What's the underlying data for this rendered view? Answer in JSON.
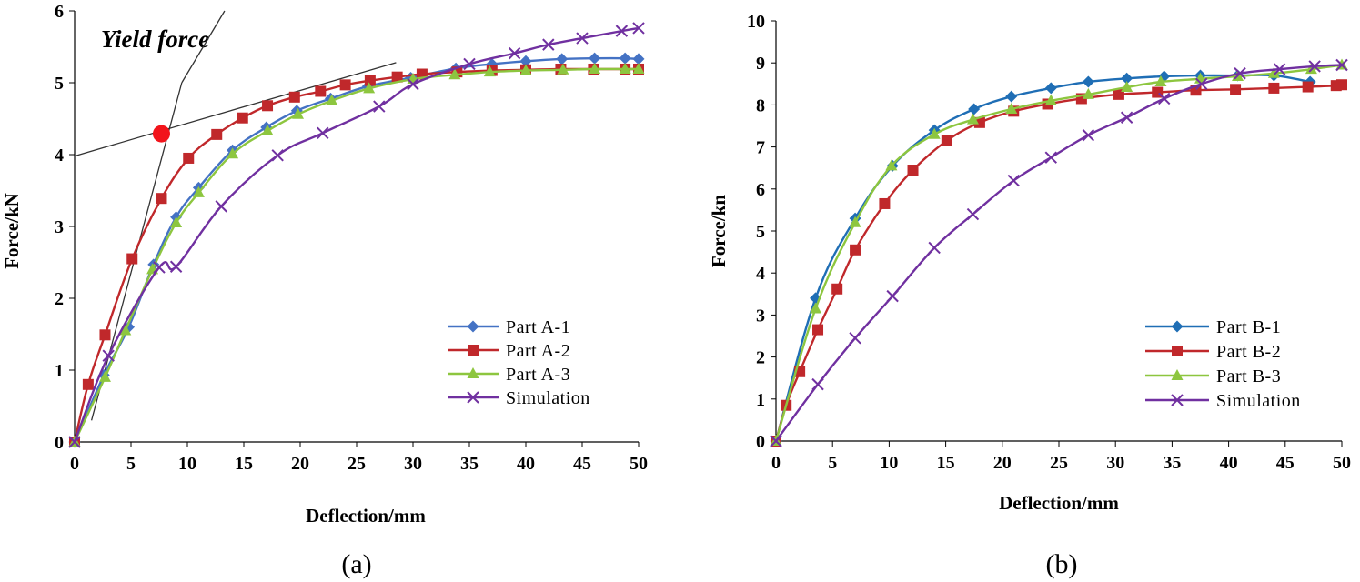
{
  "chart_data": [
    {
      "type": "line",
      "panel": "(a)",
      "title": "",
      "xlabel": "Deflection/mm",
      "ylabel": "Force/kN",
      "xlim": [
        0,
        50
      ],
      "ylim": [
        0,
        6
      ],
      "xticks": [
        0,
        5,
        10,
        15,
        20,
        25,
        30,
        35,
        40,
        45,
        50
      ],
      "yticks": [
        0,
        1,
        2,
        3,
        4,
        5,
        6
      ],
      "legend_position": "bottom-right",
      "annotation": {
        "text": "Yield force",
        "point": [
          7.7,
          4.29
        ]
      },
      "tangent_lines": [
        {
          "from": [
            0,
            3.98
          ],
          "to": [
            28.5,
            5.28
          ]
        },
        {
          "from": [
            1.5,
            0.3
          ],
          "to": [
            9.5,
            5.0
          ]
        },
        {
          "from": [
            9.5,
            5.0
          ],
          "to": [
            13.3,
            6.0
          ]
        }
      ],
      "series": [
        {
          "name": "Part A-1",
          "color": "#4472C4",
          "marker": "diamond",
          "x": [
            0,
            2.6,
            4.8,
            7.0,
            9.0,
            11.0,
            14.0,
            17.0,
            19.7,
            22.7,
            26.0,
            29.8,
            33.8,
            37.0,
            40.0,
            43.2,
            46.1,
            48.8,
            50
          ],
          "y": [
            0,
            0.93,
            1.6,
            2.47,
            3.13,
            3.54,
            4.06,
            4.38,
            4.61,
            4.78,
            4.95,
            5.07,
            5.2,
            5.26,
            5.3,
            5.33,
            5.34,
            5.34,
            5.33
          ]
        },
        {
          "name": "Part A-2",
          "color": "#C0282B",
          "marker": "square",
          "x": [
            0,
            1.2,
            2.7,
            5.1,
            7.7,
            10.1,
            12.6,
            14.9,
            17.1,
            19.5,
            21.8,
            24.0,
            26.2,
            28.6,
            30.8,
            33.9,
            37.0,
            40.0,
            43.1,
            46.0,
            48.8,
            50
          ],
          "y": [
            0,
            0.8,
            1.49,
            2.55,
            3.39,
            3.95,
            4.28,
            4.51,
            4.68,
            4.8,
            4.88,
            4.97,
            5.03,
            5.08,
            5.12,
            5.15,
            5.17,
            5.18,
            5.19,
            5.19,
            5.19,
            5.19
          ]
        },
        {
          "name": "Part A-3",
          "color": "#8DC63F",
          "marker": "triangle",
          "x": [
            0,
            2.7,
            4.5,
            6.9,
            9.0,
            11.0,
            14.0,
            17.1,
            19.8,
            22.8,
            26.1,
            30.0,
            33.7,
            36.8,
            40.0,
            43.3,
            46.1,
            48.8,
            50
          ],
          "y": [
            0,
            0.9,
            1.55,
            2.4,
            3.05,
            3.47,
            4.01,
            4.33,
            4.56,
            4.75,
            4.92,
            5.05,
            5.11,
            5.15,
            5.17,
            5.18,
            5.19,
            5.19,
            5.19
          ]
        },
        {
          "name": "Simulation",
          "color": "#7030A0",
          "marker": "x",
          "x": [
            0,
            3.0,
            7.5,
            9.0,
            13.0,
            18.0,
            22.0,
            27.0,
            30.0,
            35.0,
            39.0,
            42.0,
            45.0,
            48.5,
            50
          ],
          "y": [
            0,
            1.2,
            2.43,
            2.44,
            3.28,
            3.99,
            4.3,
            4.67,
            4.98,
            5.26,
            5.41,
            5.53,
            5.62,
            5.72,
            5.76
          ]
        }
      ]
    },
    {
      "type": "line",
      "panel": "(b)",
      "title": "",
      "xlabel": "Deflection/mm",
      "ylabel": "Force/kn",
      "xlim": [
        0,
        50
      ],
      "ylim": [
        0,
        10
      ],
      "xticks": [
        0,
        5,
        10,
        15,
        20,
        25,
        30,
        35,
        40,
        45,
        50
      ],
      "yticks": [
        0,
        1,
        2,
        3,
        4,
        5,
        6,
        7,
        8,
        9,
        10
      ],
      "legend_position": "bottom-right",
      "series": [
        {
          "name": "Part B-1",
          "color": "#1F6EB5",
          "marker": "diamond",
          "x": [
            0,
            3.5,
            7.0,
            10.3,
            14.0,
            17.5,
            20.8,
            24.3,
            27.6,
            31.0,
            34.3,
            37.5,
            40.8,
            44.0,
            47.2
          ],
          "y": [
            0,
            3.4,
            5.3,
            6.55,
            7.4,
            7.9,
            8.2,
            8.4,
            8.55,
            8.63,
            8.68,
            8.7,
            8.7,
            8.7,
            8.55
          ]
        },
        {
          "name": "Part B-2",
          "color": "#C0282B",
          "marker": "square",
          "x": [
            0,
            0.9,
            2.1,
            3.7,
            5.4,
            7.0,
            9.6,
            12.1,
            15.1,
            18.0,
            21.0,
            24.0,
            27.0,
            30.3,
            33.7,
            37.1,
            40.6,
            44.0,
            47.0,
            49.5,
            50
          ],
          "y": [
            0,
            0.85,
            1.65,
            2.65,
            3.62,
            4.55,
            5.65,
            6.45,
            7.15,
            7.58,
            7.85,
            8.02,
            8.15,
            8.25,
            8.3,
            8.35,
            8.37,
            8.4,
            8.43,
            8.46,
            8.48
          ]
        },
        {
          "name": "Part B-3",
          "color": "#8DC63F",
          "marker": "triangle",
          "x": [
            0,
            3.5,
            7.0,
            10.2,
            14.0,
            17.4,
            20.8,
            24.3,
            27.6,
            31.0,
            34.0,
            37.5,
            40.8,
            44.0,
            47.3,
            50
          ],
          "y": [
            0,
            3.15,
            5.2,
            6.55,
            7.3,
            7.65,
            7.9,
            8.1,
            8.25,
            8.42,
            8.55,
            8.62,
            8.68,
            8.75,
            8.85,
            8.95
          ]
        },
        {
          "name": "Simulation",
          "color": "#7030A0",
          "marker": "x",
          "x": [
            0,
            3.7,
            7.0,
            10.3,
            14.0,
            17.4,
            21.0,
            24.3,
            27.6,
            31.0,
            34.3,
            37.6,
            41.0,
            44.5,
            47.6,
            50
          ],
          "y": [
            0,
            1.35,
            2.45,
            3.45,
            4.6,
            5.4,
            6.2,
            6.75,
            7.28,
            7.7,
            8.15,
            8.5,
            8.75,
            8.85,
            8.92,
            8.95
          ]
        }
      ]
    }
  ]
}
